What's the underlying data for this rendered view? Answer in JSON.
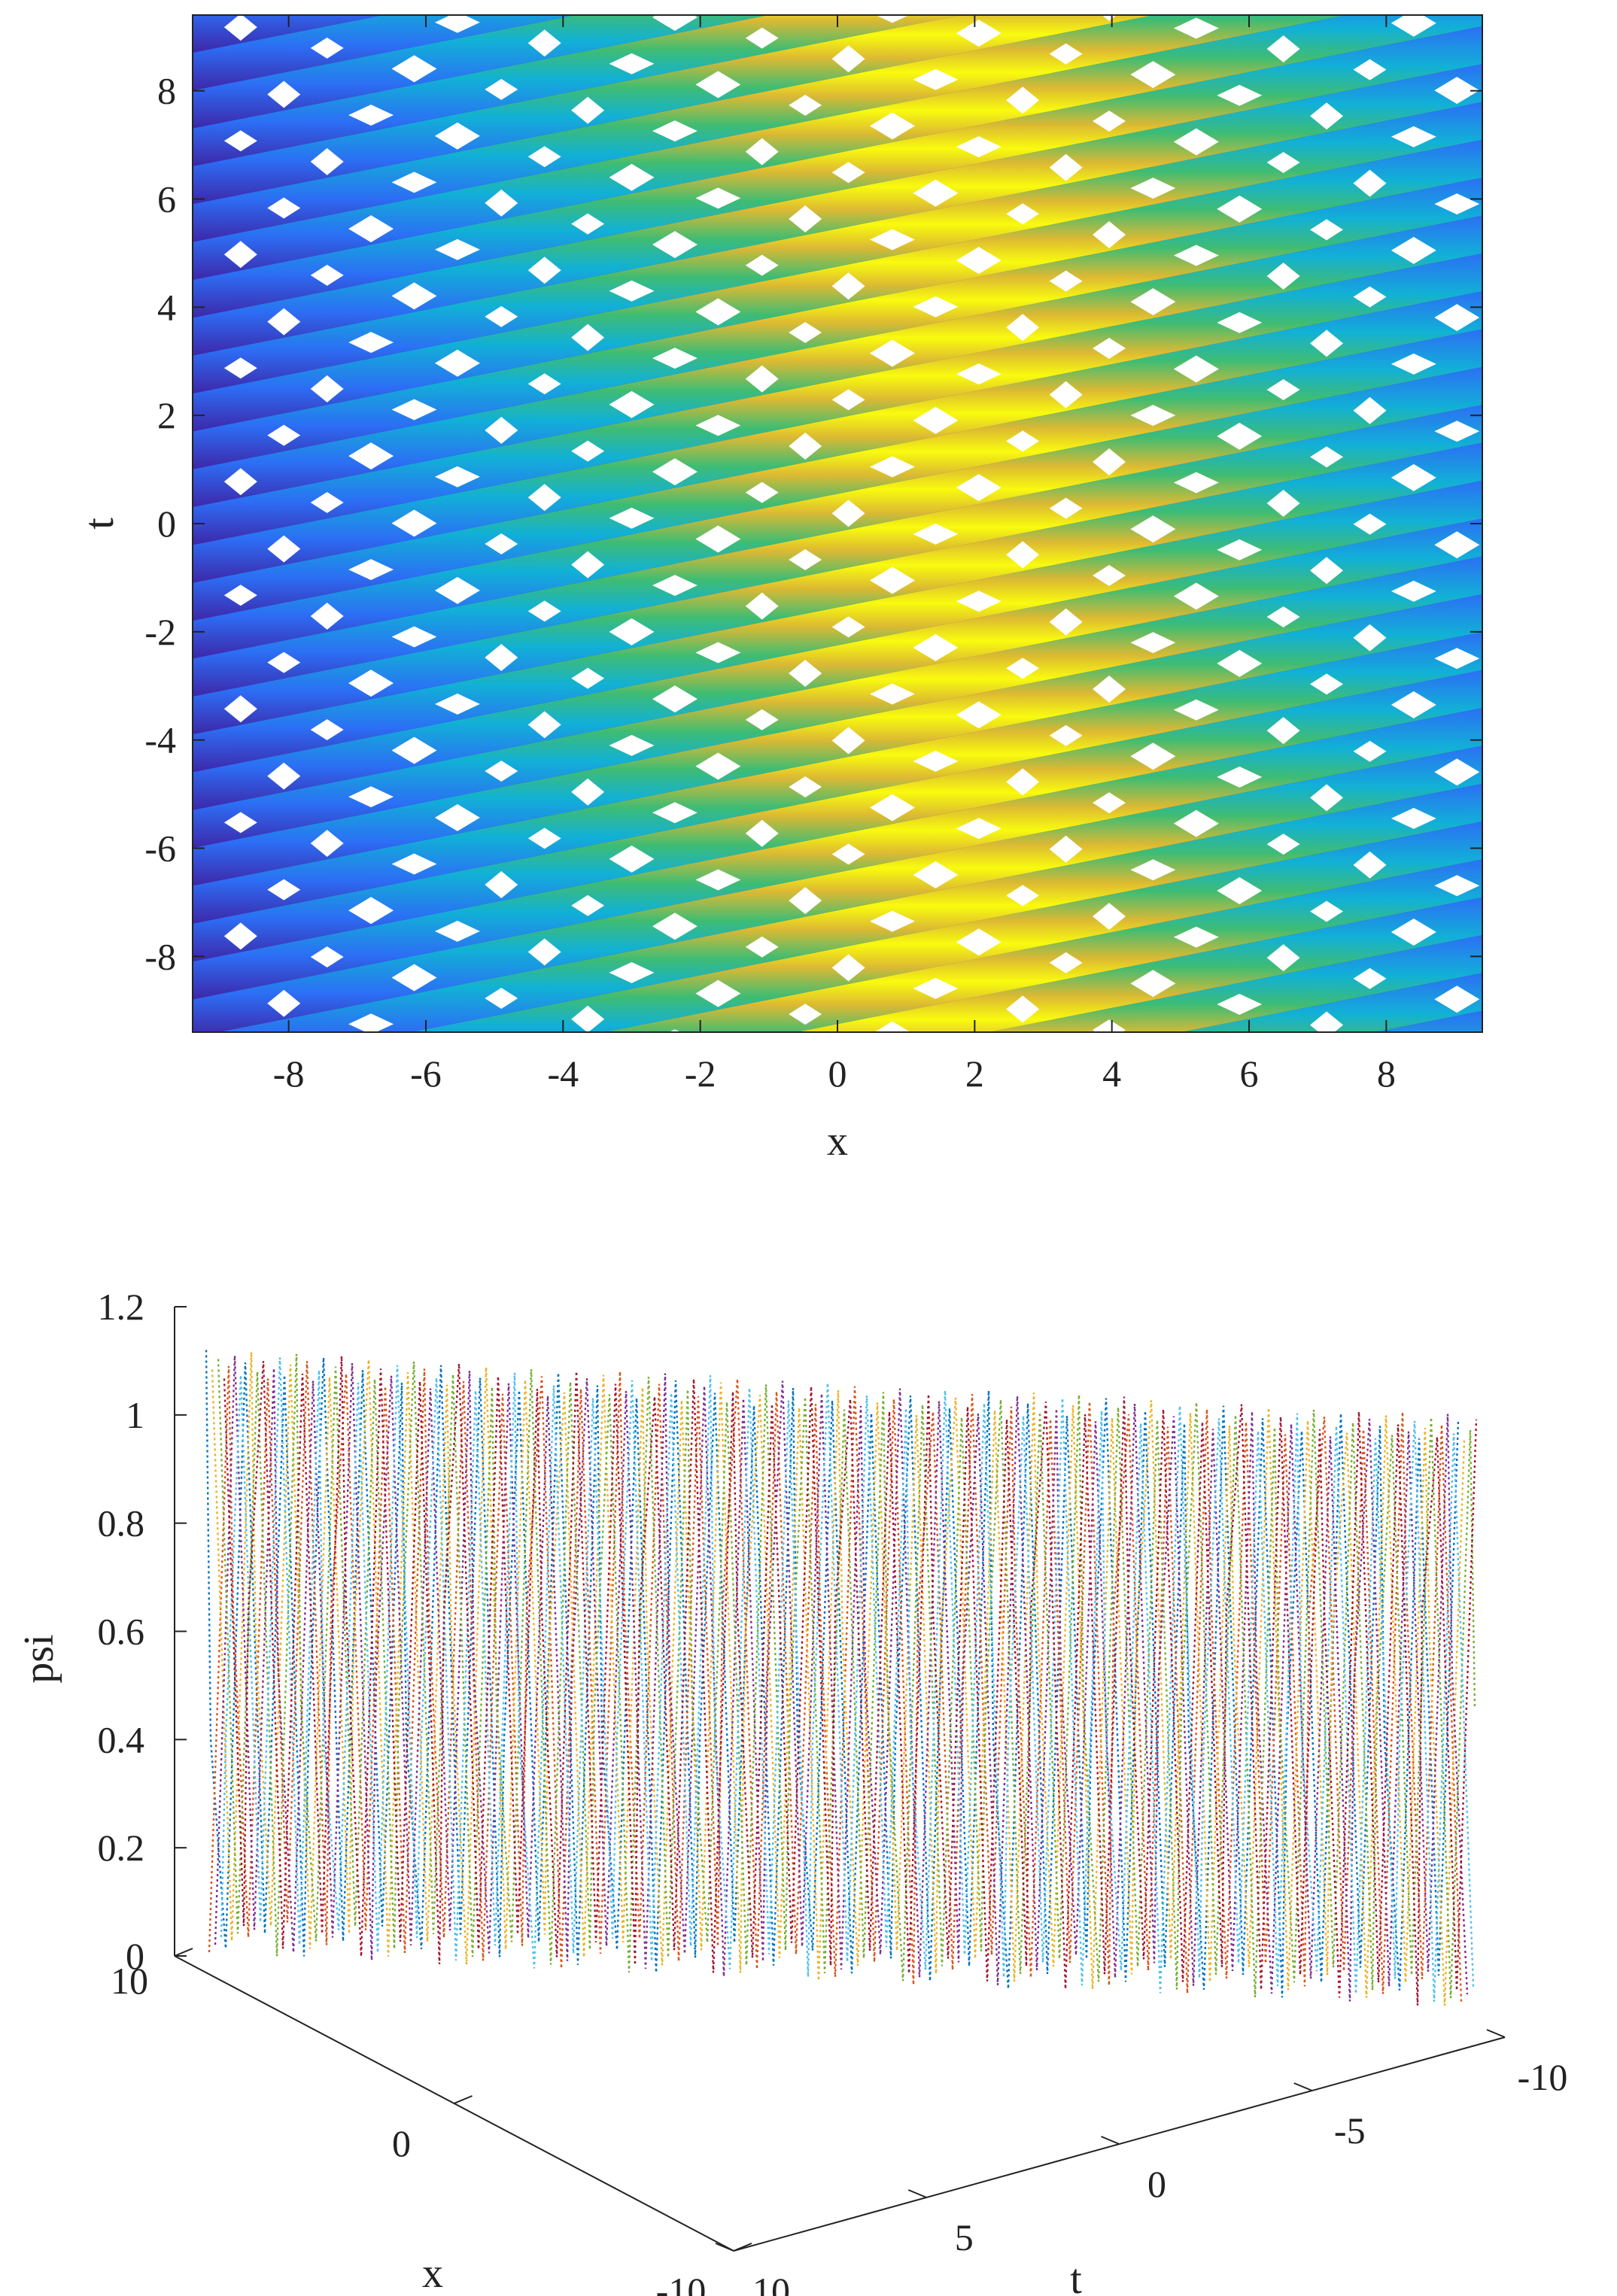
{
  "chart_data": [
    {
      "type": "heatmap",
      "title": "",
      "xlabel": "x",
      "ylabel": "t",
      "xlim": [
        -9.4,
        9.4
      ],
      "ylim": [
        -9.4,
        9.4
      ],
      "xticks": [
        -8,
        -6,
        -4,
        -2,
        0,
        2,
        4,
        6,
        8
      ],
      "yticks": [
        -8,
        -6,
        -4,
        -2,
        0,
        2,
        4,
        6,
        8
      ],
      "xtick_labels": [
        "-8",
        "-6",
        "-4",
        "-2",
        "0",
        "2",
        "4",
        "6",
        "8"
      ],
      "ytick_labels": [
        "-8",
        "-6",
        "-4",
        "-2",
        "0",
        "2",
        "4",
        "6",
        "8"
      ],
      "colormap": "parula",
      "colors": [
        "#3e26a8",
        "#2c6ef5",
        "#11b1d6",
        "#3fbc73",
        "#dcb933",
        "#f9fb0e"
      ],
      "pattern": {
        "description_values": "periodic stripes tilted along x - 4t",
        "stripe_band_period_t": 0.7,
        "stripe_slope_dx_dt": 4.0,
        "white_diamond_marks": true
      }
    },
    {
      "type": "line",
      "title": "",
      "xlabel": "x",
      "ylabel": "t",
      "zlabel": "psi",
      "xlim": [
        -10,
        10
      ],
      "ylim": [
        -10,
        10
      ],
      "zlim": [
        0,
        1.2
      ],
      "xticks": [
        -10,
        0,
        10
      ],
      "xtick_labels": [
        "-10",
        "0",
        "10"
      ],
      "yticks": [
        -10,
        -5,
        0,
        5,
        10
      ],
      "ytick_labels": [
        "-10",
        "-5",
        "0",
        "5",
        "10"
      ],
      "zticks": [
        0,
        0.2,
        0.4,
        0.6,
        0.8,
        1.0,
        1.2
      ],
      "ztick_labels": [
        "0",
        "0.2",
        "0.4",
        "0.6",
        "0.8",
        "1",
        "1.2"
      ],
      "series_colors": [
        "#0072bd",
        "#d95319",
        "#edb120",
        "#7e2f8e",
        "#77ac30",
        "#4dbeee",
        "#a2142f"
      ],
      "line_style": "dotted",
      "psi_range": [
        0.0,
        1.12
      ],
      "oscillation_count": 64
    }
  ]
}
